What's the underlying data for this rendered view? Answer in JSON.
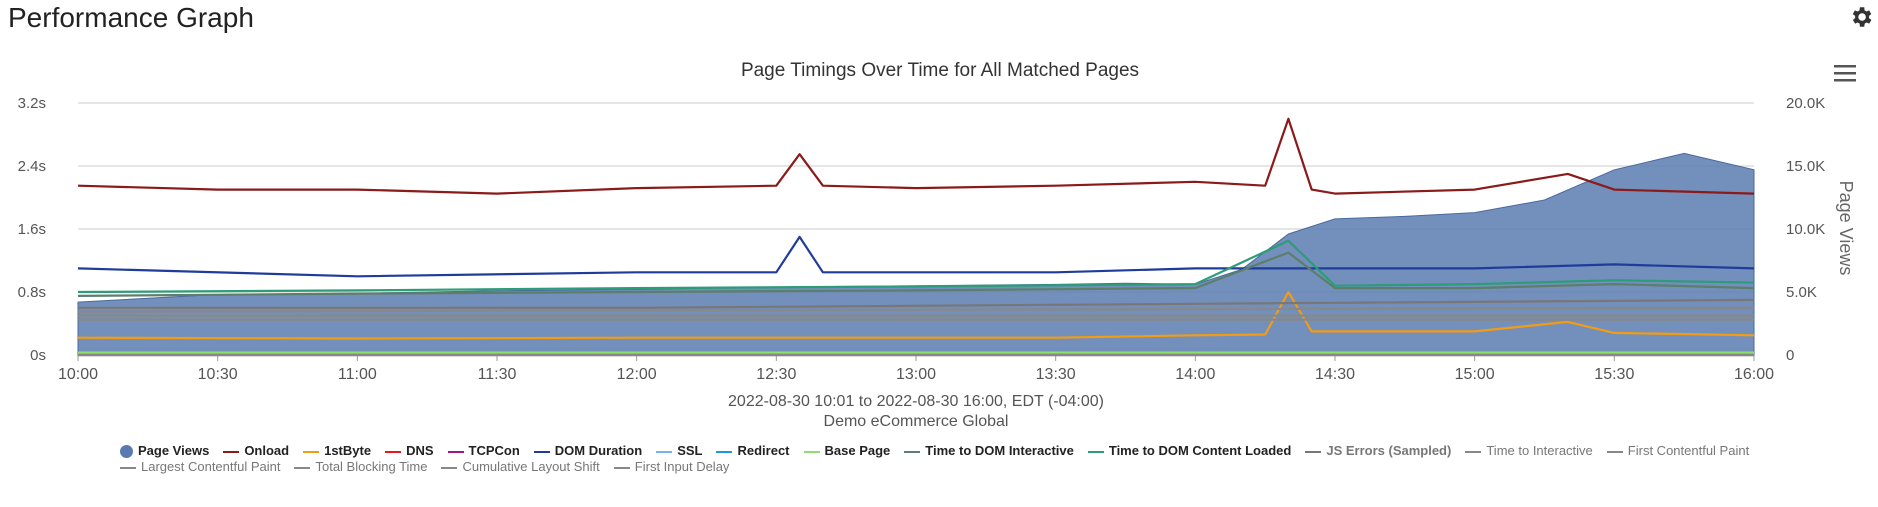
{
  "header": {
    "title": "Performance Graph",
    "settings_icon": "gear-icon"
  },
  "chart": {
    "title": "Page Timings Over Time for All Matched Pages",
    "subtitle_1": "2022-08-30 10:01 to 2022-08-30 16:00, EDT (-04:00)",
    "subtitle_2": "Demo eCommerce Global",
    "menu_icon": "hamburger-menu-icon",
    "y_axis_right_title": "Page Views"
  },
  "chart_data": {
    "type": "line",
    "x_ticks": [
      "10:00",
      "10:30",
      "11:00",
      "11:30",
      "12:00",
      "12:30",
      "13:00",
      "13:30",
      "14:00",
      "14:30",
      "15:00",
      "15:30",
      "16:00"
    ],
    "x_range": [
      "10:00",
      "16:00"
    ],
    "y_left_ticks": [
      "0s",
      "0.8s",
      "1.6s",
      "2.4s",
      "3.2s"
    ],
    "y_left_range": [
      0,
      3.2
    ],
    "y_right_ticks": [
      "0",
      "5.0K",
      "10.0K",
      "15.0K",
      "20.0K"
    ],
    "y_right_range": [
      0,
      20000
    ],
    "y_right_label": "Page Views",
    "grid": true,
    "legend_position": "bottom",
    "series": [
      {
        "name": "Page Views",
        "kind": "area",
        "axis": "right",
        "color": "#5b7bb0",
        "x": [
          "10:00",
          "10:30",
          "11:00",
          "11:30",
          "12:00",
          "12:30",
          "13:00",
          "13:30",
          "13:45",
          "14:00",
          "14:10",
          "14:20",
          "14:30",
          "14:45",
          "15:00",
          "15:15",
          "15:30",
          "15:45",
          "16:00"
        ],
        "values": [
          4200,
          4800,
          4900,
          5100,
          5200,
          5400,
          5500,
          5600,
          5700,
          5600,
          6800,
          9600,
          10800,
          11000,
          11300,
          12300,
          14700,
          16000,
          14700
        ]
      },
      {
        "name": "Onload",
        "kind": "line",
        "axis": "left",
        "color": "#8b1a1a",
        "x": [
          "10:00",
          "10:30",
          "11:00",
          "11:30",
          "12:00",
          "12:30",
          "12:35",
          "12:40",
          "13:00",
          "13:30",
          "14:00",
          "14:15",
          "14:20",
          "14:25",
          "14:30",
          "15:00",
          "15:20",
          "15:30",
          "16:00"
        ],
        "values": [
          2.15,
          2.1,
          2.1,
          2.05,
          2.12,
          2.15,
          2.55,
          2.15,
          2.12,
          2.15,
          2.2,
          2.15,
          3.0,
          2.1,
          2.05,
          2.1,
          2.3,
          2.1,
          2.05
        ]
      },
      {
        "name": "1stByte",
        "kind": "line",
        "axis": "left",
        "color": "#f39c12",
        "x": [
          "10:00",
          "11:00",
          "12:00",
          "13:00",
          "13:30",
          "14:00",
          "14:15",
          "14:20",
          "14:25",
          "15:00",
          "15:20",
          "15:30",
          "16:00"
        ],
        "values": [
          0.22,
          0.21,
          0.22,
          0.22,
          0.22,
          0.25,
          0.26,
          0.8,
          0.3,
          0.3,
          0.42,
          0.28,
          0.25
        ]
      },
      {
        "name": "DNS",
        "kind": "line",
        "axis": "left",
        "color": "#e31a1c",
        "x": [
          "10:00",
          "16:00"
        ],
        "values": [
          0.01,
          0.01
        ]
      },
      {
        "name": "TCPCon",
        "kind": "line",
        "axis": "left",
        "color": "#a0148c",
        "x": [
          "10:00",
          "16:00"
        ],
        "values": [
          0.01,
          0.01
        ]
      },
      {
        "name": "DOM Duration",
        "kind": "line",
        "axis": "left",
        "color": "#1f3c9c",
        "x": [
          "10:00",
          "11:00",
          "12:00",
          "12:30",
          "12:35",
          "12:40",
          "13:00",
          "13:30",
          "14:00",
          "14:30",
          "15:00",
          "15:30",
          "16:00"
        ],
        "values": [
          1.1,
          1.0,
          1.05,
          1.05,
          1.5,
          1.05,
          1.05,
          1.05,
          1.1,
          1.1,
          1.1,
          1.15,
          1.1
        ]
      },
      {
        "name": "SSL",
        "kind": "line",
        "axis": "left",
        "color": "#74b3e6",
        "x": [
          "10:00",
          "16:00"
        ],
        "values": [
          0.02,
          0.02
        ]
      },
      {
        "name": "Redirect",
        "kind": "line",
        "axis": "left",
        "color": "#1d9ad6",
        "x": [
          "10:00",
          "16:00"
        ],
        "values": [
          0.01,
          0.01
        ]
      },
      {
        "name": "Base Page",
        "kind": "line",
        "axis": "left",
        "color": "#8ee06a",
        "x": [
          "10:00",
          "16:00"
        ],
        "values": [
          0.03,
          0.03
        ]
      },
      {
        "name": "Time to DOM Interactive",
        "kind": "line",
        "axis": "left",
        "color": "#5c7e6a",
        "x": [
          "10:00",
          "11:00",
          "12:00",
          "13:00",
          "14:00",
          "14:20",
          "14:30",
          "15:00",
          "15:30",
          "16:00"
        ],
        "values": [
          0.75,
          0.78,
          0.8,
          0.82,
          0.85,
          1.3,
          0.85,
          0.85,
          0.9,
          0.85
        ]
      },
      {
        "name": "Time to DOM Content Loaded",
        "kind": "line",
        "axis": "left",
        "color": "#2d9c78",
        "x": [
          "10:00",
          "11:00",
          "12:00",
          "13:00",
          "14:00",
          "14:20",
          "14:30",
          "15:00",
          "15:30",
          "16:00"
        ],
        "values": [
          0.8,
          0.82,
          0.85,
          0.87,
          0.9,
          1.45,
          0.88,
          0.9,
          0.95,
          0.92
        ]
      },
      {
        "name": "JS Errors (Sampled)",
        "kind": "line",
        "axis": "left",
        "color": "#777777",
        "x": [
          "10:00",
          "12:00",
          "14:00",
          "16:00"
        ],
        "values": [
          0.6,
          0.6,
          0.65,
          0.7
        ]
      },
      {
        "name": "Time to Interactive",
        "kind": "line",
        "axis": "left",
        "color": "#888888",
        "x": [
          "10:00",
          "16:00"
        ],
        "values": [
          0.55,
          0.6
        ]
      },
      {
        "name": "First Contentful Paint",
        "kind": "line",
        "axis": "left",
        "color": "#888888",
        "x": [
          "10:00",
          "16:00"
        ],
        "values": [
          0.5,
          0.5
        ]
      },
      {
        "name": "Largest Contentful Paint",
        "kind": "line",
        "axis": "left",
        "color": "#888888",
        "x": [
          "10:00",
          "16:00"
        ],
        "values": [
          0.45,
          0.45
        ]
      },
      {
        "name": "Total Blocking Time",
        "kind": "line",
        "axis": "left",
        "color": "#888888",
        "x": [
          "10:00",
          "16:00"
        ],
        "values": [
          0.0,
          0.0
        ]
      },
      {
        "name": "Cumulative Layout Shift",
        "kind": "line",
        "axis": "left",
        "color": "#888888",
        "x": [
          "10:00",
          "16:00"
        ],
        "values": [
          0.0,
          0.0
        ]
      },
      {
        "name": "First Input Delay",
        "kind": "line",
        "axis": "left",
        "color": "#888888",
        "x": [
          "10:00",
          "16:00"
        ],
        "values": [
          0.0,
          0.0
        ]
      }
    ]
  },
  "legend": [
    {
      "label": "Page Views",
      "color": "#5b7bb0",
      "marker": "dot",
      "style": "bold"
    },
    {
      "label": "Onload",
      "color": "#8b1a1a",
      "marker": "line",
      "style": "bold"
    },
    {
      "label": "1stByte",
      "color": "#f39c12",
      "marker": "line",
      "style": "bold"
    },
    {
      "label": "DNS",
      "color": "#e31a1c",
      "marker": "line",
      "style": "bold"
    },
    {
      "label": "TCPCon",
      "color": "#a0148c",
      "marker": "line",
      "style": "bold"
    },
    {
      "label": "DOM Duration",
      "color": "#1f3c9c",
      "marker": "line",
      "style": "bold"
    },
    {
      "label": "SSL",
      "color": "#74b3e6",
      "marker": "line",
      "style": "bold"
    },
    {
      "label": "Redirect",
      "color": "#1d9ad6",
      "marker": "line",
      "style": "bold"
    },
    {
      "label": "Base Page",
      "color": "#8ee06a",
      "marker": "line",
      "style": "bold"
    },
    {
      "label": "Time to DOM Interactive",
      "color": "#5c7e6a",
      "marker": "line",
      "style": "bold"
    },
    {
      "label": "Time to DOM Content Loaded",
      "color": "#2d9c78",
      "marker": "line",
      "style": "bold"
    },
    {
      "label": "JS Errors (Sampled)",
      "color": "#777777",
      "marker": "line",
      "style": "dim-bold"
    },
    {
      "label": "Time to Interactive",
      "color": "#888888",
      "marker": "line",
      "style": "dim"
    },
    {
      "label": "First Contentful Paint",
      "color": "#888888",
      "marker": "line",
      "style": "dim"
    },
    {
      "label": "Largest Contentful Paint",
      "color": "#888888",
      "marker": "line",
      "style": "dim"
    },
    {
      "label": "Total Blocking Time",
      "color": "#888888",
      "marker": "line",
      "style": "dim"
    },
    {
      "label": "Cumulative Layout Shift",
      "color": "#888888",
      "marker": "line",
      "style": "dim"
    },
    {
      "label": "First Input Delay",
      "color": "#888888",
      "marker": "line",
      "style": "dim"
    }
  ]
}
